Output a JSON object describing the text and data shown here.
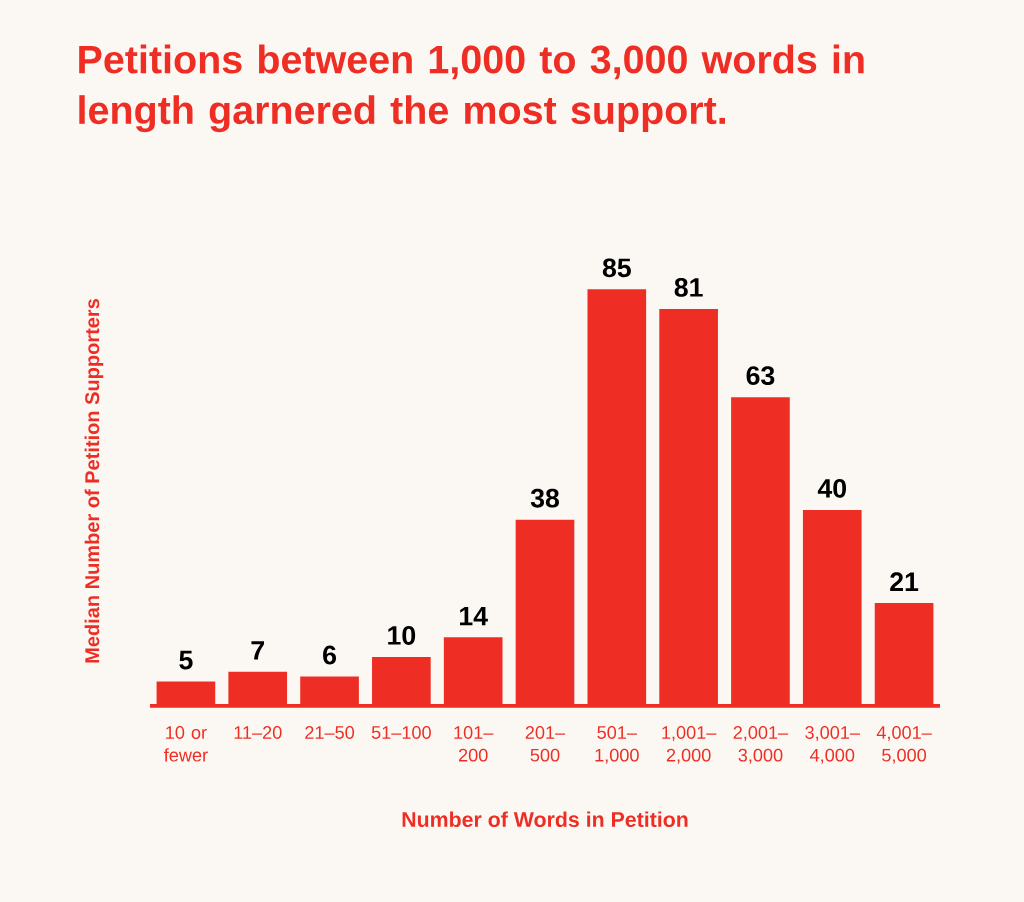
{
  "chart_data": {
    "type": "bar",
    "title": "Petitions between 1,000 to 3,000 words in length garnered the most support.",
    "xlabel": "Number of Words in Petition",
    "ylabel": "Median Number of Petition Supporters",
    "categories": [
      "10 or fewer",
      "11–20",
      "21–50",
      "51–100",
      "101–200",
      "201–500",
      "501–1,000",
      "1,001–2,000",
      "2,001–3,000",
      "3,001–4,000",
      "4,001–5,000"
    ],
    "values": [
      5,
      7,
      6,
      10,
      14,
      38,
      85,
      81,
      63,
      40,
      21
    ],
    "color": "#ee2e24",
    "data_labels": true
  }
}
